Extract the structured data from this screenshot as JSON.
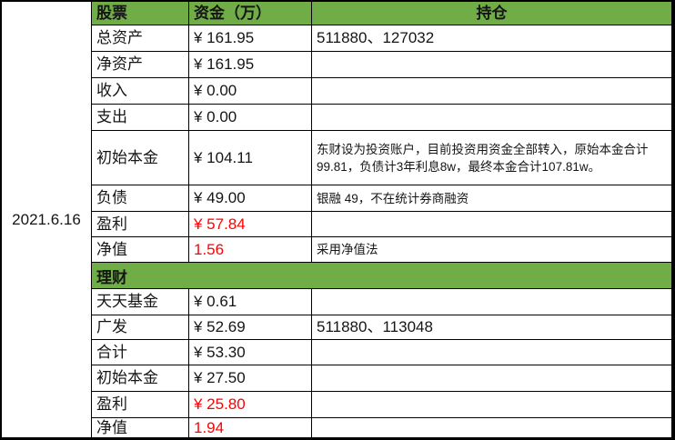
{
  "date_label": "2021.6.16",
  "colors": {
    "green": "#70AD47",
    "red": "#FF0000",
    "border": "#000000"
  },
  "header": {
    "stock": "股票",
    "funds": "资金（万）",
    "holdings": "持仓"
  },
  "sections": {
    "stock": {
      "rows": [
        {
          "label": "总资产",
          "amount": "¥ 161.95",
          "holding": "511880、127032"
        },
        {
          "label": "净资产",
          "amount": "¥ 161.95",
          "holding": ""
        },
        {
          "label": "收入",
          "amount": "¥ 0.00",
          "holding": ""
        },
        {
          "label": "支出",
          "amount": "¥ 0.00",
          "holding": ""
        },
        {
          "label": "初始本金",
          "amount": "¥ 104.11",
          "holding": "东财设为投资账户，目前投资用资金全部转入，原始本金合计99.81，负债计3年利息8w，最终本金合计107.81w。"
        },
        {
          "label": "负债",
          "amount": "¥ 49.00",
          "holding": "银融 49，不在统计券商融资"
        },
        {
          "label": "盈利",
          "amount": "¥ 57.84",
          "holding": ""
        },
        {
          "label": "净值",
          "amount": "1.56",
          "holding": "采用净值法"
        }
      ]
    },
    "wealth": {
      "title": "理财",
      "rows": [
        {
          "label": "天天基金",
          "amount": "¥ 0.61",
          "holding": ""
        },
        {
          "label": "广发",
          "amount": "¥ 52.69",
          "holding": "511880、113048"
        },
        {
          "label": "合计",
          "amount": "¥ 53.30",
          "holding": ""
        },
        {
          "label": "初始本金",
          "amount": "¥ 27.50",
          "holding": ""
        },
        {
          "label": "盈利",
          "amount": "¥ 25.80",
          "holding": ""
        },
        {
          "label": "净值",
          "amount": "1.94",
          "holding": ""
        }
      ]
    }
  }
}
